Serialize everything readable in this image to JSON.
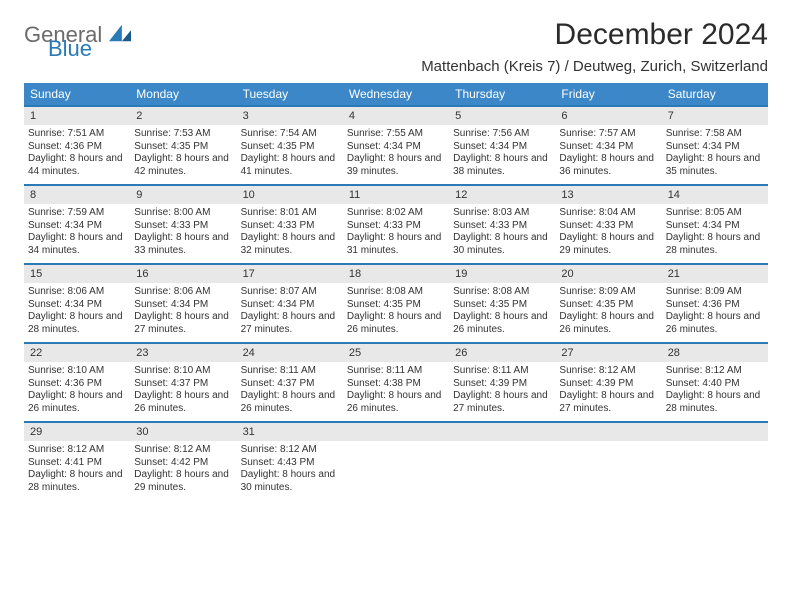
{
  "brand": {
    "text1": "General",
    "text2": "Blue"
  },
  "title": "December 2024",
  "location": "Mattenbach (Kreis 7) / Deutweg, Zurich, Switzerland",
  "colors": {
    "header_bg": "#3b87c8",
    "header_text": "#ffffff",
    "week_border": "#2a7ab8",
    "daynum_bg": "#e8e8e8",
    "body_text": "#333333",
    "brand_gray": "#6b6b6b",
    "brand_blue": "#2a7ab8",
    "page_bg": "#ffffff"
  },
  "dayNames": [
    "Sunday",
    "Monday",
    "Tuesday",
    "Wednesday",
    "Thursday",
    "Friday",
    "Saturday"
  ],
  "weeks": [
    [
      {
        "n": "1",
        "sr": "7:51 AM",
        "ss": "4:36 PM",
        "dl": "8 hours and 44 minutes."
      },
      {
        "n": "2",
        "sr": "7:53 AM",
        "ss": "4:35 PM",
        "dl": "8 hours and 42 minutes."
      },
      {
        "n": "3",
        "sr": "7:54 AM",
        "ss": "4:35 PM",
        "dl": "8 hours and 41 minutes."
      },
      {
        "n": "4",
        "sr": "7:55 AM",
        "ss": "4:34 PM",
        "dl": "8 hours and 39 minutes."
      },
      {
        "n": "5",
        "sr": "7:56 AM",
        "ss": "4:34 PM",
        "dl": "8 hours and 38 minutes."
      },
      {
        "n": "6",
        "sr": "7:57 AM",
        "ss": "4:34 PM",
        "dl": "8 hours and 36 minutes."
      },
      {
        "n": "7",
        "sr": "7:58 AM",
        "ss": "4:34 PM",
        "dl": "8 hours and 35 minutes."
      }
    ],
    [
      {
        "n": "8",
        "sr": "7:59 AM",
        "ss": "4:34 PM",
        "dl": "8 hours and 34 minutes."
      },
      {
        "n": "9",
        "sr": "8:00 AM",
        "ss": "4:33 PM",
        "dl": "8 hours and 33 minutes."
      },
      {
        "n": "10",
        "sr": "8:01 AM",
        "ss": "4:33 PM",
        "dl": "8 hours and 32 minutes."
      },
      {
        "n": "11",
        "sr": "8:02 AM",
        "ss": "4:33 PM",
        "dl": "8 hours and 31 minutes."
      },
      {
        "n": "12",
        "sr": "8:03 AM",
        "ss": "4:33 PM",
        "dl": "8 hours and 30 minutes."
      },
      {
        "n": "13",
        "sr": "8:04 AM",
        "ss": "4:33 PM",
        "dl": "8 hours and 29 minutes."
      },
      {
        "n": "14",
        "sr": "8:05 AM",
        "ss": "4:34 PM",
        "dl": "8 hours and 28 minutes."
      }
    ],
    [
      {
        "n": "15",
        "sr": "8:06 AM",
        "ss": "4:34 PM",
        "dl": "8 hours and 28 minutes."
      },
      {
        "n": "16",
        "sr": "8:06 AM",
        "ss": "4:34 PM",
        "dl": "8 hours and 27 minutes."
      },
      {
        "n": "17",
        "sr": "8:07 AM",
        "ss": "4:34 PM",
        "dl": "8 hours and 27 minutes."
      },
      {
        "n": "18",
        "sr": "8:08 AM",
        "ss": "4:35 PM",
        "dl": "8 hours and 26 minutes."
      },
      {
        "n": "19",
        "sr": "8:08 AM",
        "ss": "4:35 PM",
        "dl": "8 hours and 26 minutes."
      },
      {
        "n": "20",
        "sr": "8:09 AM",
        "ss": "4:35 PM",
        "dl": "8 hours and 26 minutes."
      },
      {
        "n": "21",
        "sr": "8:09 AM",
        "ss": "4:36 PM",
        "dl": "8 hours and 26 minutes."
      }
    ],
    [
      {
        "n": "22",
        "sr": "8:10 AM",
        "ss": "4:36 PM",
        "dl": "8 hours and 26 minutes."
      },
      {
        "n": "23",
        "sr": "8:10 AM",
        "ss": "4:37 PM",
        "dl": "8 hours and 26 minutes."
      },
      {
        "n": "24",
        "sr": "8:11 AM",
        "ss": "4:37 PM",
        "dl": "8 hours and 26 minutes."
      },
      {
        "n": "25",
        "sr": "8:11 AM",
        "ss": "4:38 PM",
        "dl": "8 hours and 26 minutes."
      },
      {
        "n": "26",
        "sr": "8:11 AM",
        "ss": "4:39 PM",
        "dl": "8 hours and 27 minutes."
      },
      {
        "n": "27",
        "sr": "8:12 AM",
        "ss": "4:39 PM",
        "dl": "8 hours and 27 minutes."
      },
      {
        "n": "28",
        "sr": "8:12 AM",
        "ss": "4:40 PM",
        "dl": "8 hours and 28 minutes."
      }
    ],
    [
      {
        "n": "29",
        "sr": "8:12 AM",
        "ss": "4:41 PM",
        "dl": "8 hours and 28 minutes."
      },
      {
        "n": "30",
        "sr": "8:12 AM",
        "ss": "4:42 PM",
        "dl": "8 hours and 29 minutes."
      },
      {
        "n": "31",
        "sr": "8:12 AM",
        "ss": "4:43 PM",
        "dl": "8 hours and 30 minutes."
      },
      null,
      null,
      null,
      null
    ]
  ],
  "labels": {
    "sunrise": "Sunrise:",
    "sunset": "Sunset:",
    "daylight": "Daylight:"
  }
}
